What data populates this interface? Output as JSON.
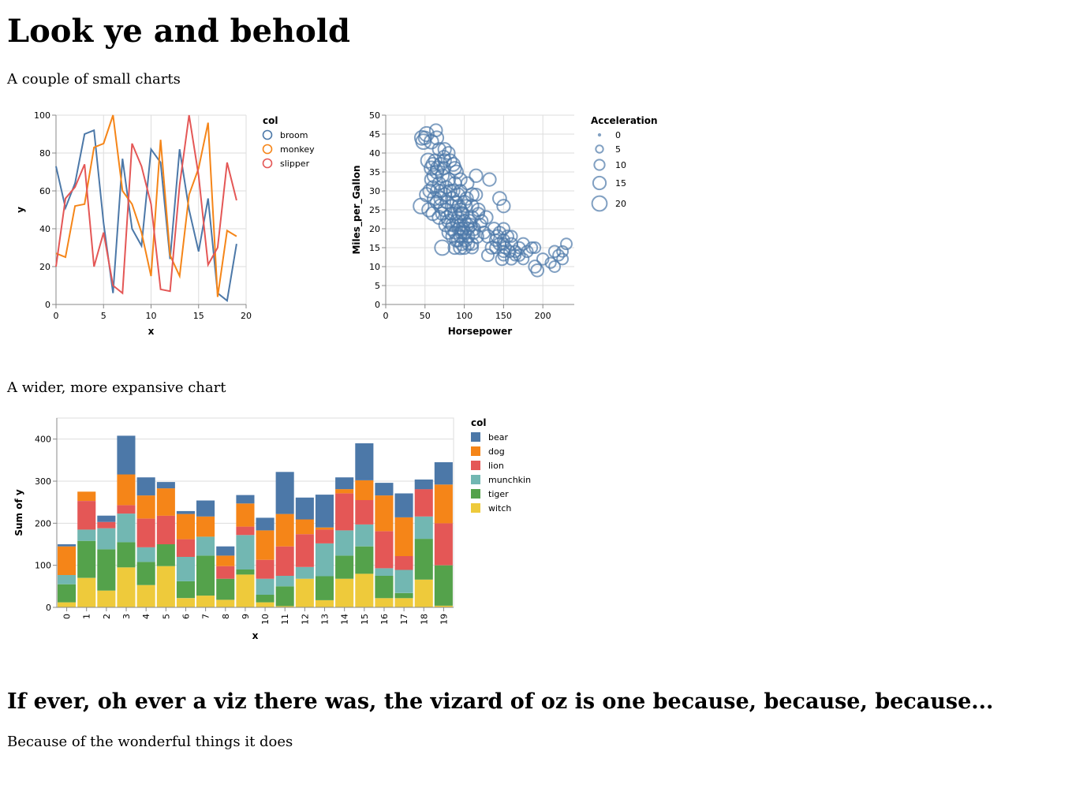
{
  "page": {
    "title": "Look ye and behold",
    "intro": "A couple of small charts",
    "wide_caption": "A wider, more expansive chart",
    "heading2": "If ever, oh ever a viz there was, the vizard of oz is one because, because, because...",
    "closing": "Because of the wonderful things it does"
  },
  "chart_data": [
    {
      "type": "line",
      "xlabel": "x",
      "ylabel": "y",
      "xlim": [
        0,
        20
      ],
      "ylim": [
        0,
        100
      ],
      "x_ticks": [
        0,
        5,
        10,
        15,
        20
      ],
      "y_ticks": [
        0,
        20,
        40,
        60,
        80,
        100
      ],
      "grid": true,
      "legend": {
        "title": "col",
        "position": "right"
      },
      "x": [
        0,
        1,
        2,
        3,
        4,
        5,
        6,
        7,
        8,
        9,
        10,
        11,
        12,
        13,
        14,
        15,
        16,
        17,
        18,
        19
      ],
      "series": [
        {
          "name": "broom",
          "color": "#4c78a8",
          "values": [
            73,
            51,
            64,
            90,
            92,
            43,
            6,
            77,
            40,
            31,
            82,
            75,
            24,
            82,
            50,
            28,
            56,
            6,
            2,
            32
          ]
        },
        {
          "name": "monkey",
          "color": "#f58518",
          "values": [
            27,
            25,
            52,
            53,
            83,
            85,
            100,
            60,
            53,
            38,
            15,
            87,
            26,
            15,
            58,
            72,
            96,
            4,
            39,
            36
          ]
        },
        {
          "name": "slipper",
          "color": "#e45756",
          "values": [
            20,
            56,
            62,
            74,
            20,
            38,
            10,
            6,
            85,
            73,
            53,
            8,
            7,
            63,
            100,
            68,
            21,
            30,
            75,
            55
          ]
        }
      ]
    },
    {
      "type": "scatter",
      "xlabel": "Horsepower",
      "ylabel": "Miles_per_Gallon",
      "xlim": [
        0,
        240
      ],
      "ylim": [
        0,
        50
      ],
      "x_ticks": [
        0,
        50,
        100,
        150,
        200
      ],
      "y_ticks": [
        0,
        5,
        10,
        15,
        20,
        25,
        30,
        35,
        40,
        45,
        50
      ],
      "grid": true,
      "color": "#4c78a8",
      "legend": {
        "title": "Acceleration",
        "position": "right",
        "values": [
          0,
          5,
          10,
          15,
          20
        ]
      },
      "points": [
        [
          46,
          44,
          18
        ],
        [
          48,
          43,
          20
        ],
        [
          50,
          44,
          15
        ],
        [
          52,
          45,
          19
        ],
        [
          58,
          43,
          18
        ],
        [
          64,
          46,
          14
        ],
        [
          65,
          44,
          16
        ],
        [
          75,
          41,
          15
        ],
        [
          80,
          40,
          14
        ],
        [
          52,
          29,
          17
        ],
        [
          56,
          30,
          16
        ],
        [
          58,
          33,
          15
        ],
        [
          60,
          31,
          14
        ],
        [
          62,
          28,
          17
        ],
        [
          65,
          35,
          16
        ],
        [
          68,
          32,
          15
        ],
        [
          70,
          30,
          14
        ],
        [
          72,
          34,
          16
        ],
        [
          74,
          36,
          15
        ],
        [
          75,
          29,
          16
        ],
        [
          77,
          31,
          14
        ],
        [
          78,
          27,
          15
        ],
        [
          80,
          33,
          16
        ],
        [
          82,
          30,
          15
        ],
        [
          84,
          26,
          14
        ],
        [
          85,
          28,
          16
        ],
        [
          88,
          32,
          15
        ],
        [
          90,
          27,
          14
        ],
        [
          92,
          29,
          16
        ],
        [
          95,
          25,
          15
        ],
        [
          45,
          26,
          21
        ],
        [
          55,
          25,
          17
        ],
        [
          60,
          24,
          16
        ],
        [
          65,
          27,
          15
        ],
        [
          68,
          23,
          16
        ],
        [
          70,
          26,
          17
        ],
        [
          72,
          24,
          15
        ],
        [
          75,
          25,
          16
        ],
        [
          78,
          23,
          15
        ],
        [
          80,
          22,
          16
        ],
        [
          83,
          24,
          14
        ],
        [
          85,
          21,
          15
        ],
        [
          88,
          24,
          16
        ],
        [
          90,
          22,
          15
        ],
        [
          92,
          23,
          14
        ],
        [
          95,
          21,
          15
        ],
        [
          97,
          24,
          16
        ],
        [
          100,
          22,
          15
        ],
        [
          105,
          20,
          14
        ],
        [
          110,
          23,
          15
        ],
        [
          60,
          37,
          16
        ],
        [
          63,
          38,
          15
        ],
        [
          66,
          36,
          17
        ],
        [
          70,
          37,
          16
        ],
        [
          75,
          38,
          15
        ],
        [
          86,
          37,
          16
        ],
        [
          88,
          36,
          15
        ],
        [
          95,
          30,
          14
        ],
        [
          100,
          27,
          16
        ],
        [
          103,
          28,
          15
        ],
        [
          110,
          26,
          15
        ],
        [
          115,
          29,
          14
        ],
        [
          118,
          25,
          15
        ],
        [
          85,
          18,
          15
        ],
        [
          88,
          19,
          14
        ],
        [
          90,
          17,
          16
        ],
        [
          93,
          20,
          15
        ],
        [
          95,
          18,
          14
        ],
        [
          97,
          16,
          15
        ],
        [
          100,
          19,
          16
        ],
        [
          102,
          17,
          15
        ],
        [
          105,
          18,
          14
        ],
        [
          108,
          21,
          15
        ],
        [
          110,
          16,
          14
        ],
        [
          112,
          19,
          15
        ],
        [
          88,
          15,
          15
        ],
        [
          95,
          15,
          16
        ],
        [
          100,
          15,
          15
        ],
        [
          72,
          15,
          20
        ],
        [
          105,
          16,
          14
        ],
        [
          110,
          15,
          13
        ],
        [
          130,
          18,
          15
        ],
        [
          135,
          15,
          14
        ],
        [
          140,
          17,
          13
        ],
        [
          145,
          19,
          13
        ],
        [
          150,
          16,
          12
        ],
        [
          150,
          14,
          12
        ],
        [
          150,
          13,
          11
        ],
        [
          152,
          15,
          13
        ],
        [
          155,
          18,
          13
        ],
        [
          158,
          14,
          12
        ],
        [
          160,
          16,
          13
        ],
        [
          165,
          14,
          12
        ],
        [
          170,
          13,
          12
        ],
        [
          175,
          16,
          13
        ],
        [
          180,
          14,
          12
        ],
        [
          190,
          15,
          11
        ],
        [
          130,
          13,
          13
        ],
        [
          140,
          15,
          12
        ],
        [
          150,
          17,
          13
        ],
        [
          148,
          12,
          14
        ],
        [
          160,
          12,
          12
        ],
        [
          165,
          13,
          11
        ],
        [
          175,
          12,
          11
        ],
        [
          190,
          10,
          14
        ],
        [
          193,
          9,
          14
        ],
        [
          200,
          12,
          12
        ],
        [
          210,
          11,
          10
        ],
        [
          215,
          10,
          11
        ],
        [
          215,
          14,
          12
        ],
        [
          220,
          13,
          11
        ],
        [
          225,
          14,
          11
        ],
        [
          230,
          16,
          11
        ],
        [
          225,
          12,
          11
        ],
        [
          145,
          28,
          16
        ],
        [
          132,
          33,
          15
        ],
        [
          110,
          29,
          16
        ],
        [
          115,
          34,
          15
        ],
        [
          150,
          26,
          15
        ],
        [
          98,
          20,
          16
        ],
        [
          103,
          21,
          17
        ],
        [
          107,
          22,
          15
        ],
        [
          112,
          20,
          16
        ],
        [
          116,
          18,
          16
        ],
        [
          120,
          21,
          15
        ],
        [
          125,
          19,
          14
        ],
        [
          128,
          23,
          15
        ],
        [
          138,
          20,
          14
        ],
        [
          142,
          18,
          15
        ],
        [
          145,
          16,
          14
        ],
        [
          68,
          41,
          15
        ],
        [
          74,
          39,
          14
        ],
        [
          82,
          38,
          15
        ],
        [
          90,
          35,
          16
        ],
        [
          95,
          33,
          15
        ],
        [
          104,
          32,
          14
        ],
        [
          86,
          30,
          15
        ],
        [
          93,
          26,
          15
        ],
        [
          98,
          24,
          15
        ],
        [
          102,
          26,
          14
        ],
        [
          118,
          24,
          13
        ],
        [
          122,
          22,
          14
        ],
        [
          150,
          20,
          13
        ],
        [
          160,
          18,
          12
        ],
        [
          170,
          15,
          12
        ],
        [
          186,
          15,
          11
        ],
        [
          54,
          38,
          19
        ],
        [
          58,
          36,
          17
        ],
        [
          62,
          34,
          18
        ],
        [
          66,
          30,
          17
        ],
        [
          70,
          28,
          16
        ],
        [
          76,
          21,
          15
        ],
        [
          80,
          19,
          15
        ],
        [
          84,
          20,
          16
        ],
        [
          92,
          17,
          15
        ],
        [
          96,
          19,
          14
        ]
      ]
    },
    {
      "type": "bar",
      "stacked": true,
      "xlabel": "x",
      "ylabel": "Sum of y",
      "ylim": [
        0,
        450
      ],
      "y_ticks": [
        0,
        100,
        200,
        300,
        400
      ],
      "grid": true,
      "legend": {
        "title": "col",
        "position": "right"
      },
      "categories": [
        "0",
        "1",
        "2",
        "3",
        "4",
        "5",
        "6",
        "7",
        "8",
        "9",
        "10",
        "11",
        "12",
        "13",
        "14",
        "15",
        "16",
        "17",
        "18",
        "19"
      ],
      "series": [
        {
          "name": "witch",
          "color": "#eeca3b",
          "values": [
            12,
            70,
            40,
            95,
            53,
            98,
            22,
            28,
            18,
            78,
            12,
            3,
            68,
            17,
            68,
            80,
            22,
            22,
            66,
            4
          ]
        },
        {
          "name": "tiger",
          "color": "#54a24b",
          "values": [
            43,
            88,
            98,
            60,
            55,
            52,
            40,
            95,
            50,
            12,
            18,
            47,
            0,
            57,
            55,
            65,
            53,
            12,
            97,
            96
          ]
        },
        {
          "name": "munchkin",
          "color": "#72b7b2",
          "values": [
            22,
            27,
            50,
            68,
            35,
            0,
            58,
            45,
            0,
            82,
            38,
            25,
            28,
            78,
            60,
            52,
            18,
            55,
            53,
            0
          ]
        },
        {
          "name": "lion",
          "color": "#e45756",
          "values": [
            0,
            68,
            15,
            20,
            68,
            68,
            42,
            0,
            30,
            20,
            45,
            70,
            78,
            33,
            88,
            58,
            88,
            33,
            65,
            100
          ]
        },
        {
          "name": "dog",
          "color": "#f58518",
          "values": [
            68,
            22,
            0,
            73,
            55,
            65,
            60,
            48,
            25,
            55,
            70,
            77,
            35,
            5,
            10,
            47,
            85,
            92,
            0,
            92
          ]
        },
        {
          "name": "bear",
          "color": "#4c78a8",
          "values": [
            5,
            0,
            15,
            92,
            43,
            15,
            7,
            38,
            22,
            20,
            30,
            100,
            52,
            78,
            28,
            88,
            30,
            57,
            23,
            53
          ]
        }
      ]
    }
  ]
}
